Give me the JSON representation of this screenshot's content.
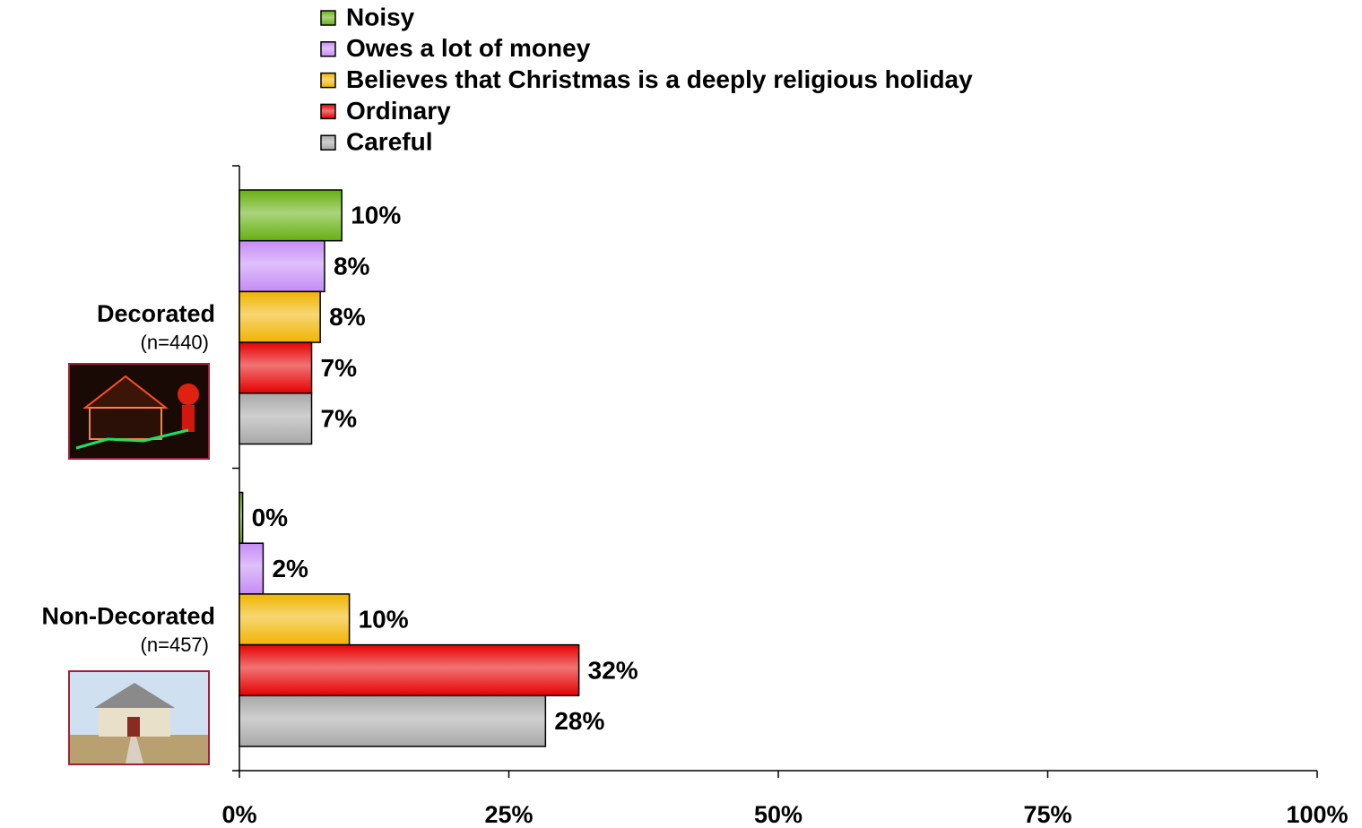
{
  "chart_data": {
    "type": "hbar",
    "categories": [
      "Decorated",
      "Non-Decorated"
    ],
    "category_notes": [
      "(n=440)",
      "(n=457)"
    ],
    "series": [
      {
        "name": "Noisy",
        "color": "#66b010",
        "values": [
          9.5,
          0.3
        ],
        "value_labels": [
          "10%",
          "0%"
        ]
      },
      {
        "name": "Owes a lot of money",
        "color": "#c58cf5",
        "values": [
          7.9,
          2.2
        ],
        "value_labels": [
          "8%",
          "2%"
        ]
      },
      {
        "name": "Believes that Christmas is a deeply religious holiday",
        "color": "#f0b400",
        "values": [
          7.5,
          10.2
        ],
        "value_labels": [
          "8%",
          "10%"
        ]
      },
      {
        "name": "Ordinary",
        "color": "#e60000",
        "values": [
          6.7,
          31.5
        ],
        "value_labels": [
          "7%",
          "32%"
        ]
      },
      {
        "name": "Careful",
        "color": "#a8a8a8",
        "values": [
          6.7,
          28.4
        ],
        "value_labels": [
          "7%",
          "28%"
        ]
      }
    ],
    "xlim": [
      0,
      100
    ],
    "xticks": [
      {
        "value": 0,
        "label": "0%"
      },
      {
        "value": 25,
        "label": "25%"
      },
      {
        "value": 50,
        "label": "50%"
      },
      {
        "value": 75,
        "label": "75%"
      },
      {
        "value": 100,
        "label": "100%"
      }
    ]
  }
}
